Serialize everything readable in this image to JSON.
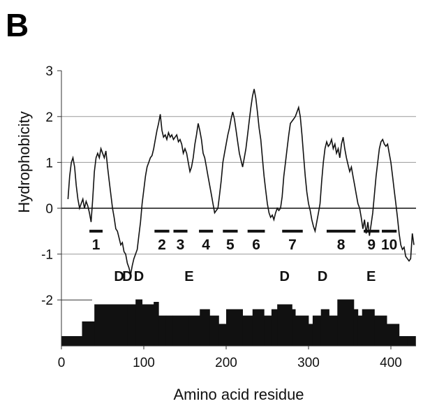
{
  "panel_label": "B",
  "chart_data": {
    "type": "line",
    "xlabel": "Amino acid residue",
    "ylabel": "Hydrophobicity",
    "xlim": [
      0,
      430
    ],
    "ylim": [
      -3,
      3
    ],
    "x_ticks": [
      0,
      100,
      200,
      300,
      400
    ],
    "y_ticks": [
      3,
      2,
      1,
      0,
      -1,
      -2
    ],
    "series": [
      {
        "points": [
          [
            8,
            0.2
          ],
          [
            10,
            0.7
          ],
          [
            12,
            1.0
          ],
          [
            14,
            1.1
          ],
          [
            16,
            0.9
          ],
          [
            18,
            0.5
          ],
          [
            20,
            0.2
          ],
          [
            22,
            0.0
          ],
          [
            24,
            0.1
          ],
          [
            26,
            0.2
          ],
          [
            28,
            0.0
          ],
          [
            30,
            0.15
          ],
          [
            32,
            0.05
          ],
          [
            34,
            -0.1
          ],
          [
            36,
            -0.3
          ],
          [
            38,
            0.2
          ],
          [
            40,
            0.8
          ],
          [
            42,
            1.1
          ],
          [
            44,
            1.2
          ],
          [
            46,
            1.1
          ],
          [
            48,
            1.3
          ],
          [
            50,
            1.2
          ],
          [
            52,
            1.1
          ],
          [
            54,
            1.25
          ],
          [
            56,
            0.9
          ],
          [
            58,
            0.6
          ],
          [
            60,
            0.3
          ],
          [
            62,
            0.0
          ],
          [
            64,
            -0.2
          ],
          [
            66,
            -0.45
          ],
          [
            68,
            -0.5
          ],
          [
            70,
            -0.65
          ],
          [
            72,
            -0.8
          ],
          [
            74,
            -0.75
          ],
          [
            76,
            -0.95
          ],
          [
            78,
            -1.0
          ],
          [
            80,
            -1.2
          ],
          [
            82,
            -1.3
          ],
          [
            84,
            -1.45
          ],
          [
            86,
            -1.25
          ],
          [
            88,
            -1.1
          ],
          [
            90,
            -1.0
          ],
          [
            92,
            -0.9
          ],
          [
            94,
            -0.6
          ],
          [
            96,
            -0.3
          ],
          [
            98,
            0.1
          ],
          [
            100,
            0.4
          ],
          [
            102,
            0.7
          ],
          [
            104,
            0.9
          ],
          [
            106,
            1.0
          ],
          [
            108,
            1.1
          ],
          [
            110,
            1.15
          ],
          [
            112,
            1.3
          ],
          [
            114,
            1.5
          ],
          [
            116,
            1.7
          ],
          [
            118,
            1.85
          ],
          [
            120,
            2.05
          ],
          [
            122,
            1.7
          ],
          [
            124,
            1.55
          ],
          [
            126,
            1.6
          ],
          [
            128,
            1.5
          ],
          [
            130,
            1.65
          ],
          [
            132,
            1.55
          ],
          [
            134,
            1.6
          ],
          [
            136,
            1.5
          ],
          [
            138,
            1.55
          ],
          [
            140,
            1.6
          ],
          [
            142,
            1.45
          ],
          [
            144,
            1.5
          ],
          [
            146,
            1.4
          ],
          [
            148,
            1.2
          ],
          [
            150,
            1.3
          ],
          [
            152,
            1.2
          ],
          [
            154,
            1.0
          ],
          [
            156,
            0.8
          ],
          [
            158,
            0.9
          ],
          [
            160,
            1.1
          ],
          [
            162,
            1.4
          ],
          [
            164,
            1.6
          ],
          [
            166,
            1.85
          ],
          [
            168,
            1.7
          ],
          [
            170,
            1.5
          ],
          [
            172,
            1.2
          ],
          [
            174,
            1.1
          ],
          [
            176,
            0.9
          ],
          [
            178,
            0.7
          ],
          [
            180,
            0.5
          ],
          [
            182,
            0.3
          ],
          [
            184,
            0.1
          ],
          [
            186,
            -0.1
          ],
          [
            188,
            -0.05
          ],
          [
            190,
            0.0
          ],
          [
            192,
            0.3
          ],
          [
            194,
            0.6
          ],
          [
            196,
            1.0
          ],
          [
            198,
            1.2
          ],
          [
            200,
            1.4
          ],
          [
            202,
            1.6
          ],
          [
            204,
            1.75
          ],
          [
            206,
            1.95
          ],
          [
            208,
            2.1
          ],
          [
            210,
            1.95
          ],
          [
            212,
            1.7
          ],
          [
            214,
            1.45
          ],
          [
            216,
            1.2
          ],
          [
            218,
            1.05
          ],
          [
            220,
            0.9
          ],
          [
            222,
            1.1
          ],
          [
            224,
            1.3
          ],
          [
            226,
            1.6
          ],
          [
            228,
            1.9
          ],
          [
            230,
            2.2
          ],
          [
            232,
            2.45
          ],
          [
            234,
            2.6
          ],
          [
            236,
            2.4
          ],
          [
            238,
            2.1
          ],
          [
            240,
            1.75
          ],
          [
            242,
            1.5
          ],
          [
            244,
            1.1
          ],
          [
            246,
            0.7
          ],
          [
            248,
            0.4
          ],
          [
            250,
            0.1
          ],
          [
            252,
            -0.1
          ],
          [
            254,
            -0.2
          ],
          [
            256,
            -0.15
          ],
          [
            258,
            -0.25
          ],
          [
            260,
            -0.1
          ],
          [
            262,
            0.0
          ],
          [
            264,
            -0.05
          ],
          [
            266,
            0.0
          ],
          [
            268,
            0.25
          ],
          [
            270,
            0.7
          ],
          [
            272,
            1.0
          ],
          [
            274,
            1.3
          ],
          [
            276,
            1.6
          ],
          [
            278,
            1.85
          ],
          [
            280,
            1.9
          ],
          [
            282,
            1.95
          ],
          [
            284,
            2.0
          ],
          [
            286,
            2.1
          ],
          [
            288,
            2.2
          ],
          [
            290,
            2.0
          ],
          [
            292,
            1.6
          ],
          [
            294,
            1.15
          ],
          [
            296,
            0.7
          ],
          [
            298,
            0.35
          ],
          [
            300,
            0.1
          ],
          [
            302,
            -0.05
          ],
          [
            304,
            -0.25
          ],
          [
            306,
            -0.4
          ],
          [
            308,
            -0.5
          ],
          [
            310,
            -0.3
          ],
          [
            312,
            -0.1
          ],
          [
            314,
            0.1
          ],
          [
            316,
            0.6
          ],
          [
            318,
            1.0
          ],
          [
            320,
            1.3
          ],
          [
            322,
            1.45
          ],
          [
            324,
            1.35
          ],
          [
            326,
            1.4
          ],
          [
            328,
            1.5
          ],
          [
            330,
            1.3
          ],
          [
            332,
            1.4
          ],
          [
            334,
            1.2
          ],
          [
            336,
            1.3
          ],
          [
            338,
            1.1
          ],
          [
            340,
            1.4
          ],
          [
            342,
            1.55
          ],
          [
            344,
            1.3
          ],
          [
            346,
            1.1
          ],
          [
            348,
            0.95
          ],
          [
            350,
            0.8
          ],
          [
            352,
            0.9
          ],
          [
            354,
            0.7
          ],
          [
            356,
            0.5
          ],
          [
            358,
            0.3
          ],
          [
            360,
            0.1
          ],
          [
            362,
            0.0
          ],
          [
            364,
            -0.2
          ],
          [
            366,
            -0.45
          ],
          [
            368,
            -0.25
          ],
          [
            370,
            -0.55
          ],
          [
            372,
            -0.3
          ],
          [
            374,
            -0.6
          ],
          [
            376,
            -0.35
          ],
          [
            378,
            -0.1
          ],
          [
            380,
            0.3
          ],
          [
            382,
            0.7
          ],
          [
            384,
            1.0
          ],
          [
            386,
            1.3
          ],
          [
            388,
            1.45
          ],
          [
            390,
            1.5
          ],
          [
            392,
            1.4
          ],
          [
            394,
            1.35
          ],
          [
            396,
            1.4
          ],
          [
            398,
            1.2
          ],
          [
            400,
            1.0
          ],
          [
            402,
            0.7
          ],
          [
            404,
            0.4
          ],
          [
            406,
            0.1
          ],
          [
            408,
            -0.2
          ],
          [
            410,
            -0.55
          ],
          [
            412,
            -0.8
          ],
          [
            414,
            -0.9
          ],
          [
            416,
            -0.85
          ],
          [
            418,
            -1.05
          ],
          [
            420,
            -1.1
          ],
          [
            422,
            -1.15
          ],
          [
            424,
            -1.1
          ],
          [
            426,
            -0.55
          ],
          [
            428,
            -0.8
          ]
        ]
      }
    ],
    "segments": [
      {
        "label": "1",
        "x": [
          34,
          50
        ]
      },
      {
        "label": "2",
        "x": [
          113,
          131
        ]
      },
      {
        "label": "3",
        "x": [
          136,
          153
        ]
      },
      {
        "label": "4",
        "x": [
          167,
          184
        ]
      },
      {
        "label": "5",
        "x": [
          196,
          214
        ]
      },
      {
        "label": "6",
        "x": [
          226,
          247
        ]
      },
      {
        "label": "7",
        "x": [
          268,
          293
        ]
      },
      {
        "label": "8",
        "x": [
          322,
          357
        ]
      },
      {
        "label": "9",
        "x": [
          367,
          386
        ]
      },
      {
        "label": "10",
        "x": [
          389,
          407
        ]
      }
    ],
    "residue_labels": [
      {
        "label": "D",
        "x": 70
      },
      {
        "label": "D",
        "x": 80
      },
      {
        "label": "D",
        "x": 94
      },
      {
        "label": "E",
        "x": 155
      },
      {
        "label": "D",
        "x": 271
      },
      {
        "label": "D",
        "x": 317
      },
      {
        "label": "E",
        "x": 376
      }
    ],
    "profile_bars": [
      [
        0,
        14,
        0.2
      ],
      [
        14,
        25,
        0.2
      ],
      [
        25,
        40,
        0.5
      ],
      [
        40,
        70,
        0.85
      ],
      [
        70,
        80,
        0.85
      ],
      [
        80,
        90,
        0.85
      ],
      [
        90,
        98,
        0.95
      ],
      [
        98,
        112,
        0.85
      ],
      [
        112,
        118,
        0.9
      ],
      [
        118,
        127,
        0.62
      ],
      [
        127,
        135,
        0.62
      ],
      [
        135,
        155,
        0.62
      ],
      [
        155,
        168,
        0.62
      ],
      [
        168,
        180,
        0.75
      ],
      [
        180,
        191,
        0.62
      ],
      [
        191,
        200,
        0.45
      ],
      [
        200,
        220,
        0.75
      ],
      [
        220,
        232,
        0.62
      ],
      [
        232,
        246,
        0.75
      ],
      [
        246,
        255,
        0.62
      ],
      [
        255,
        262,
        0.75
      ],
      [
        262,
        280,
        0.85
      ],
      [
        280,
        284,
        0.75
      ],
      [
        284,
        300,
        0.62
      ],
      [
        300,
        305,
        0.45
      ],
      [
        305,
        315,
        0.62
      ],
      [
        315,
        325,
        0.75
      ],
      [
        325,
        335,
        0.62
      ],
      [
        335,
        355,
        0.95
      ],
      [
        355,
        360,
        0.75
      ],
      [
        360,
        365,
        0.62
      ],
      [
        365,
        380,
        0.75
      ],
      [
        380,
        395,
        0.62
      ],
      [
        395,
        410,
        0.45
      ],
      [
        410,
        420,
        0.2
      ],
      [
        420,
        430,
        0.2
      ]
    ]
  }
}
